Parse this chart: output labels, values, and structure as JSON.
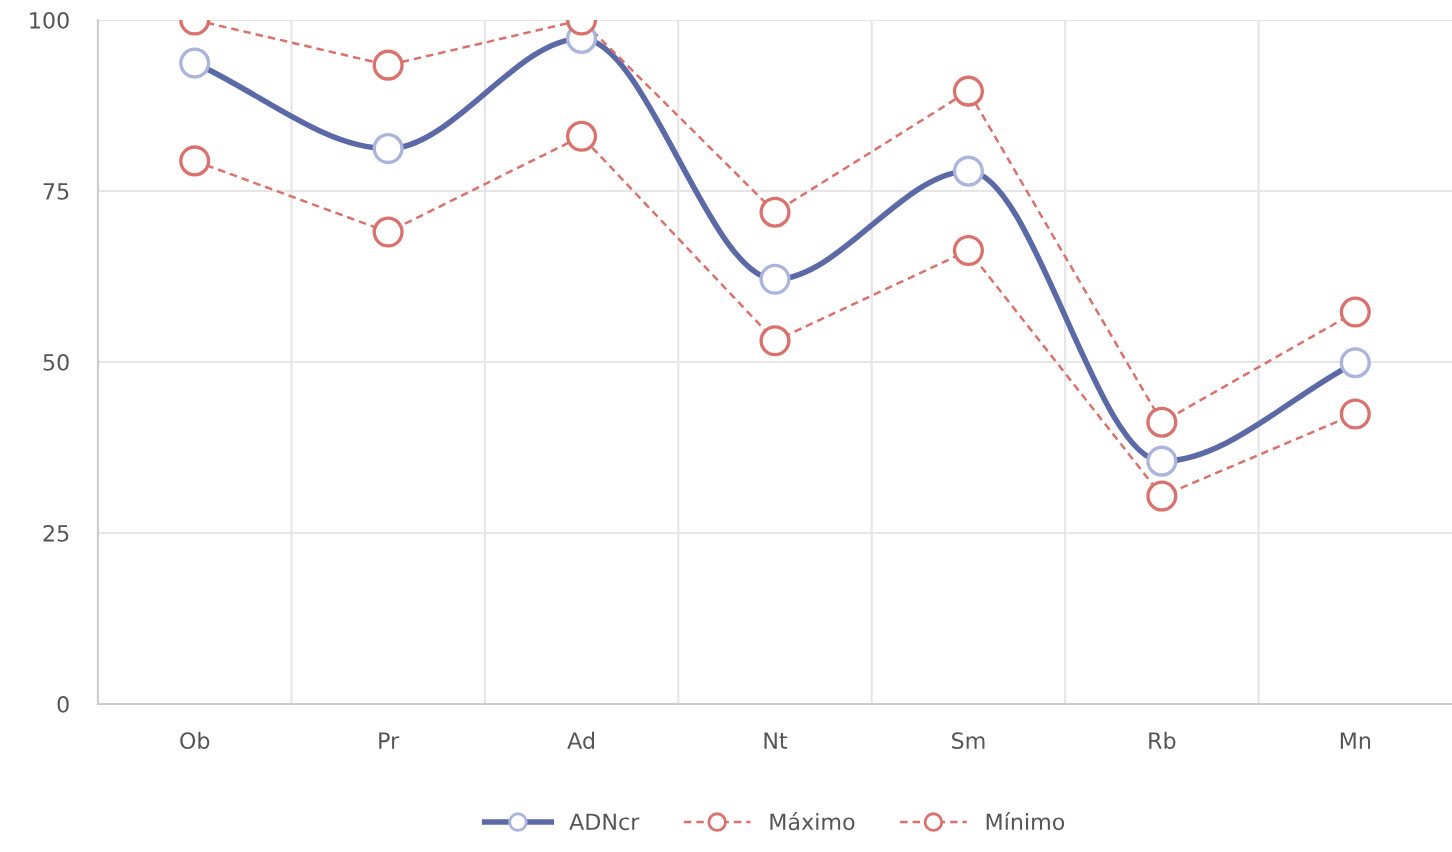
{
  "chart_data": {
    "type": "line",
    "categories": [
      "Ob",
      "Pr",
      "Ad",
      "Nt",
      "Sm",
      "Rb",
      "Mn"
    ],
    "series": [
      {
        "name": "ADNcr",
        "color": "#5b6aa6",
        "line_style": "solid",
        "values": [
          93.7,
          81.2,
          97.3,
          62.1,
          77.9,
          35.5,
          49.9
        ]
      },
      {
        "name": "Máximo",
        "color": "#d9726d",
        "line_style": "dashed",
        "values": [
          100,
          93.4,
          100,
          71.9,
          89.6,
          41.2,
          57.3
        ]
      },
      {
        "name": "Mínimo",
        "color": "#d9726d",
        "line_style": "dashed",
        "values": [
          79.4,
          69,
          83,
          53.1,
          66.3,
          30.4,
          42.4
        ]
      }
    ],
    "ylim": [
      0,
      100
    ],
    "yticks": [
      0,
      25,
      50,
      75,
      100
    ],
    "grid": true,
    "legend": "bottom",
    "marker": "circle"
  }
}
